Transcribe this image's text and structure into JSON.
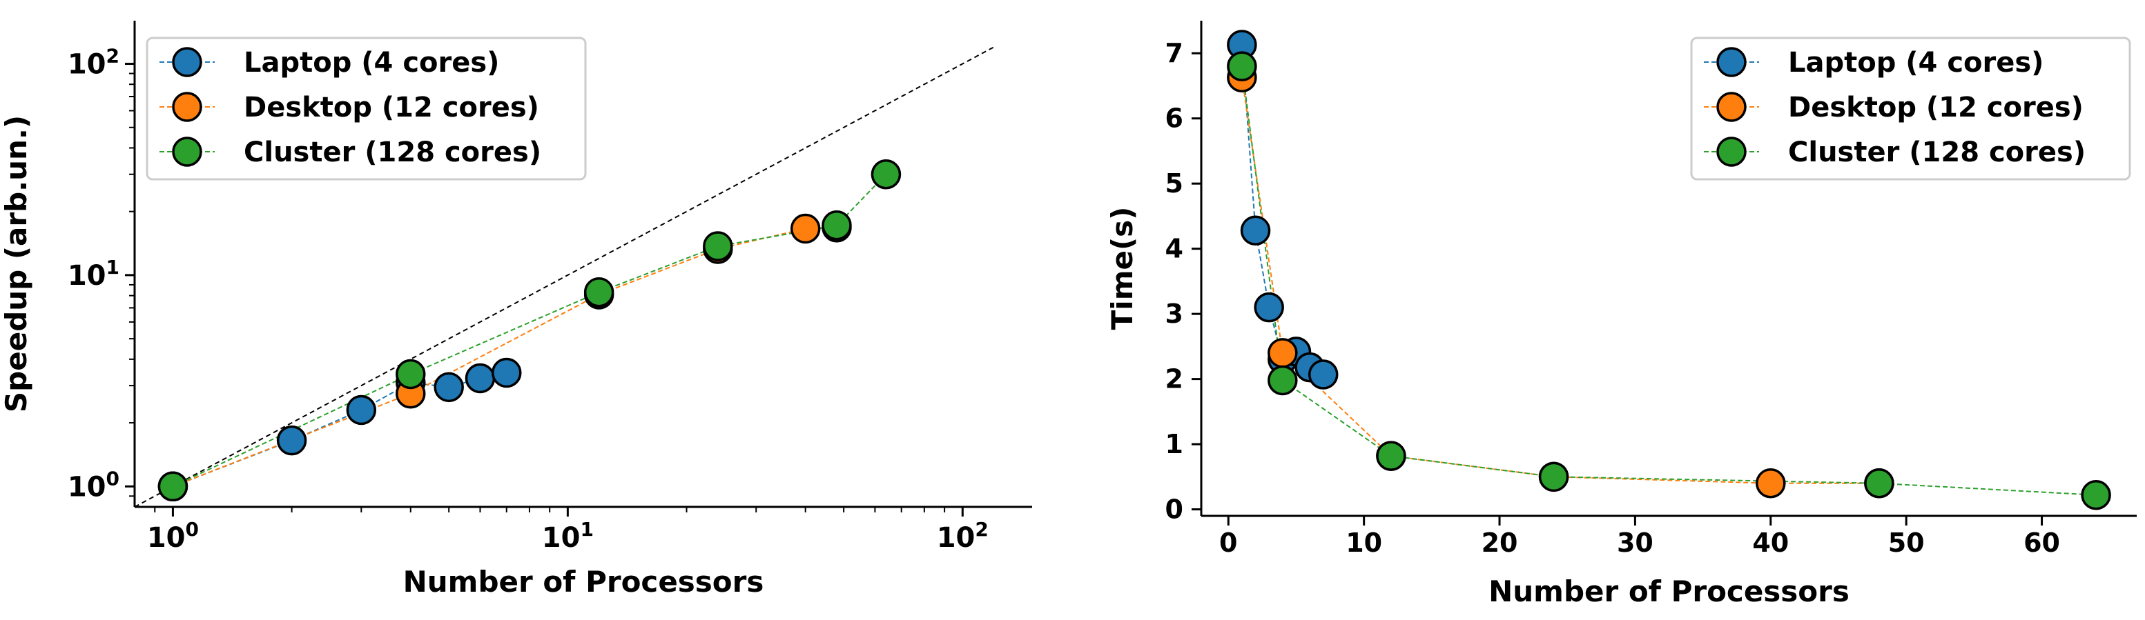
{
  "chart_data": [
    {
      "type": "scatter",
      "xscale": "log",
      "yscale": "log",
      "xlabel": "Number of Processors",
      "ylabel": "Speedup (arb.un.)",
      "xlim": [
        0.8,
        150
      ],
      "ylim": [
        0.8,
        160
      ],
      "xticks": [
        {
          "value": 1,
          "base": "10",
          "exp": "0"
        },
        {
          "value": 10,
          "base": "10",
          "exp": "1"
        },
        {
          "value": 100,
          "base": "10",
          "exp": "2"
        }
      ],
      "yticks": [
        {
          "value": 1,
          "base": "10",
          "exp": "0"
        },
        {
          "value": 10,
          "base": "10",
          "exp": "1"
        },
        {
          "value": 100,
          "base": "10",
          "exp": "2"
        }
      ],
      "reference_line": {
        "style": "black dashed",
        "x": [
          0.8,
          120
        ],
        "y": [
          0.8,
          120
        ]
      },
      "legend_position": "top-left",
      "series": [
        {
          "name": "Laptop (4 cores)",
          "color": "#1f77b4",
          "x": [
            1,
            2,
            3,
            4,
            5,
            6,
            7
          ],
          "y": [
            1.0,
            1.65,
            2.3,
            3.1,
            2.95,
            3.25,
            3.45
          ]
        },
        {
          "name": "Desktop (12 cores)",
          "color": "#ff7f0e",
          "x": [
            1,
            4,
            12,
            24,
            40,
            48
          ],
          "y": [
            1.0,
            2.75,
            8.1,
            13.3,
            16.6,
            16.8
          ]
        },
        {
          "name": "Cluster (128 cores)",
          "color": "#2ca02c",
          "x": [
            1,
            4,
            12,
            24,
            48,
            64
          ],
          "y": [
            1.0,
            3.4,
            8.3,
            13.7,
            17.2,
            30.0
          ]
        }
      ]
    },
    {
      "type": "scatter",
      "xlabel": "Number of Processors",
      "ylabel": "Time(s)",
      "xlim": [
        -2,
        67
      ],
      "ylim": [
        -0.1,
        7.5
      ],
      "xticks": [
        0,
        10,
        20,
        30,
        40,
        50,
        60
      ],
      "yticks": [
        0,
        1,
        2,
        3,
        4,
        5,
        6,
        7
      ],
      "legend_position": "top-right",
      "series": [
        {
          "name": "Laptop (4 cores)",
          "color": "#1f77b4",
          "x": [
            1,
            2,
            3,
            4,
            5,
            6,
            7
          ],
          "y": [
            7.13,
            4.28,
            3.1,
            2.3,
            2.42,
            2.18,
            2.07
          ]
        },
        {
          "name": "Desktop (12 cores)",
          "color": "#ff7f0e",
          "x": [
            1,
            4,
            12,
            24,
            40,
            48
          ],
          "y": [
            6.63,
            2.4,
            0.82,
            0.5,
            0.4,
            0.4
          ]
        },
        {
          "name": "Cluster (128 cores)",
          "color": "#2ca02c",
          "x": [
            1,
            4,
            12,
            24,
            48,
            64
          ],
          "y": [
            6.8,
            1.98,
            0.82,
            0.5,
            0.4,
            0.22
          ]
        }
      ]
    }
  ]
}
